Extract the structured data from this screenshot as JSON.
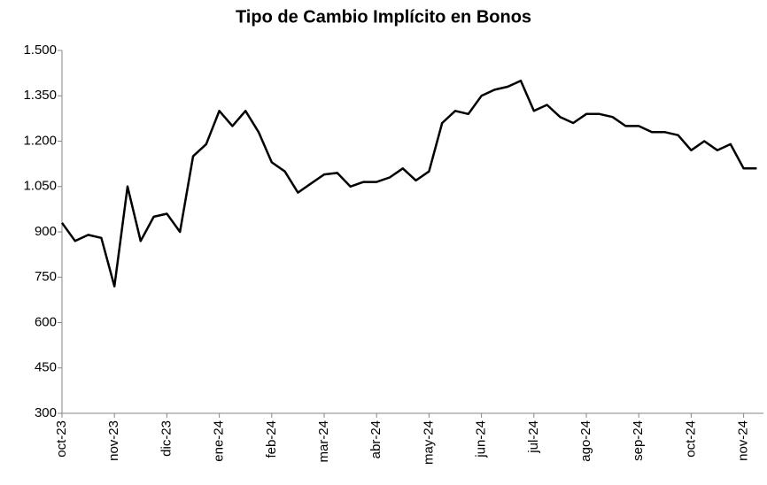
{
  "chart_data": {
    "type": "line",
    "title": "Tipo de Cambio Implícito en Bonos",
    "categories": [
      "oct-23",
      null,
      null,
      null,
      "nov-23",
      null,
      null,
      null,
      "dic-23",
      null,
      null,
      null,
      "ene-24",
      null,
      null,
      null,
      "feb-24",
      null,
      null,
      null,
      "mar-24",
      null,
      null,
      null,
      "abr-24",
      null,
      null,
      null,
      "may-24",
      null,
      null,
      null,
      "jun-24",
      null,
      null,
      null,
      "jul-24",
      null,
      null,
      null,
      "ago-24",
      null,
      null,
      null,
      "sep-24",
      null,
      null,
      null,
      "oct-24",
      null,
      null,
      null,
      "nov-24",
      null
    ],
    "series": [
      {
        "color": "#000000",
        "values": [
          930,
          870,
          890,
          880,
          720,
          1050,
          870,
          950,
          960,
          900,
          1150,
          1190,
          1300,
          1250,
          1300,
          1230,
          1130,
          1100,
          1030,
          1060,
          1090,
          1095,
          1050,
          1065,
          1065,
          1080,
          1110,
          1070,
          1100,
          1260,
          1300,
          1290,
          1350,
          1370,
          1380,
          1400,
          1300,
          1320,
          1280,
          1260,
          1290,
          1290,
          1280,
          1250,
          1250,
          1230,
          1230,
          1220,
          1170,
          1200,
          1170,
          1190,
          1110,
          1110
        ]
      }
    ],
    "ylim": [
      300,
      1500
    ],
    "yticks": [
      300,
      450,
      600,
      750,
      900,
      {
        "value": 1050,
        "label": "1.050"
      },
      {
        "value": 1200,
        "label": "1.200"
      },
      {
        "value": 1350,
        "label": "1.350"
      },
      {
        "value": 1500,
        "label": "1.500"
      }
    ],
    "grid": false
  }
}
